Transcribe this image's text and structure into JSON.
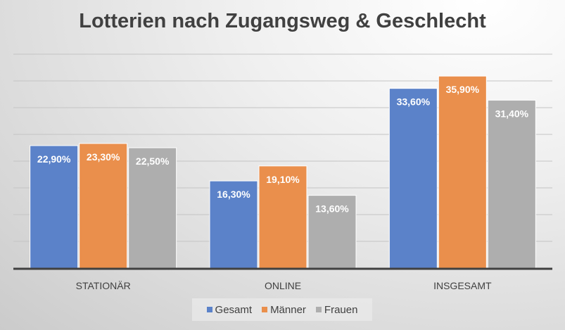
{
  "chart_data": {
    "type": "bar",
    "title": "Lotterien nach Zugangsweg & Geschlecht",
    "categories": [
      "STATIONÄR",
      "ONLINE",
      "INSGESAMT"
    ],
    "series": [
      {
        "name": "Gesamt",
        "color": "#5b82c9",
        "values": [
          22.9,
          16.3,
          33.6
        ],
        "labels": [
          "22,90%",
          "16,30%",
          "33,60%"
        ]
      },
      {
        "name": "Männer",
        "color": "#ea8f4c",
        "values": [
          23.3,
          19.1,
          35.9
        ],
        "labels": [
          "23,30%",
          "19,10%",
          "35,90%"
        ]
      },
      {
        "name": "Frauen",
        "color": "#aeaeae",
        "values": [
          22.5,
          13.6,
          31.4
        ],
        "labels": [
          "22,50%",
          "13,60%",
          "31,40%"
        ]
      }
    ],
    "xlabel": "",
    "ylabel": "",
    "ylim": [
      0,
      40
    ],
    "ytick_step": 5,
    "grid": true,
    "legend": "bottom"
  }
}
